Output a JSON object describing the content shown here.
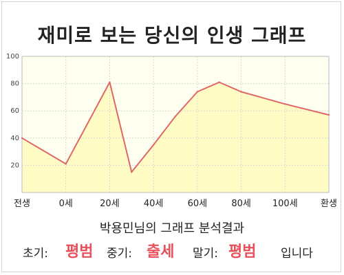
{
  "title": "재미로 보는 당신의 인생 그래프",
  "subtitle": "박용민님의 그래프 분석결과",
  "summary": {
    "early_label": "초기:",
    "early_value": "평범",
    "mid_label": "중기:",
    "mid_value": "출세",
    "late_label": "말기:",
    "late_value": "평범",
    "ending": "입니다"
  },
  "colors": {
    "line": "#e06666",
    "fill": "#fffbc4",
    "plot_bg": "#fffff0",
    "highlight": "#e8505b"
  },
  "chart_data": {
    "type": "area",
    "title": "",
    "xlabel": "",
    "ylabel": "",
    "ylim": [
      0,
      100
    ],
    "yticks": [
      20,
      40,
      60,
      80,
      100
    ],
    "grid": true,
    "x": [
      0,
      1,
      2,
      2.5,
      3,
      3.5,
      4,
      4.5,
      5,
      6,
      7
    ],
    "y": [
      40,
      21,
      81,
      15,
      35,
      56,
      74,
      81,
      74,
      65,
      57
    ],
    "tick_positions": [
      0,
      1,
      2,
      3,
      4,
      5,
      6,
      7
    ],
    "tick_labels": [
      "전생",
      "0세",
      "20세",
      "40세",
      "60세",
      "80세",
      "100세",
      "환생"
    ]
  }
}
